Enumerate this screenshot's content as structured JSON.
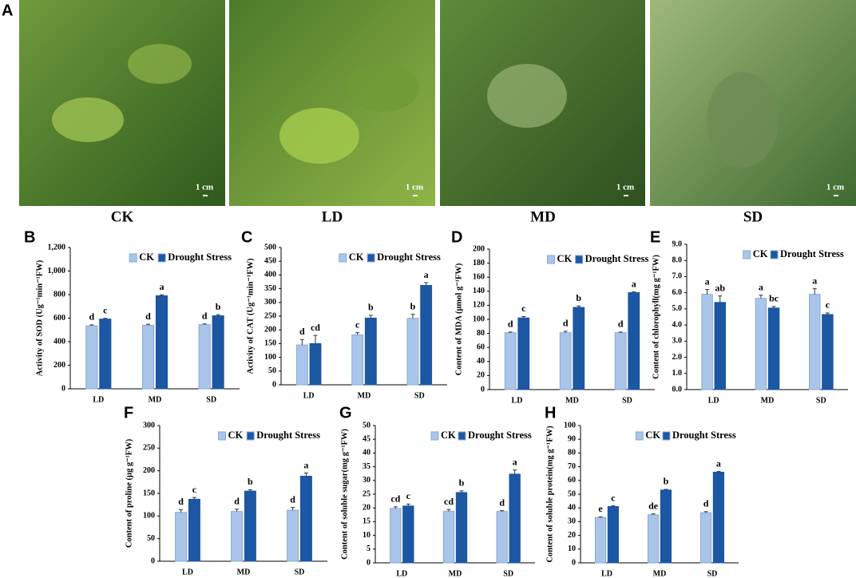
{
  "photo_panel": {
    "label": "A",
    "photos": [
      {
        "caption": "CK",
        "scale_bar": "1 cm"
      },
      {
        "caption": "LD",
        "scale_bar": "1 cm"
      },
      {
        "caption": "MD",
        "scale_bar": "1 cm"
      },
      {
        "caption": "SD",
        "scale_bar": "1 cm"
      }
    ]
  },
  "chart_data": [
    {
      "type": "bar",
      "panel_label": "B",
      "ylabel": "Activity of SOD (Ug⁻¹min⁻¹FW)",
      "categories": [
        "LD",
        "MD",
        "SD"
      ],
      "series": [
        {
          "name": "CK",
          "color": "#a9c5ea",
          "values": [
            535,
            540,
            545
          ],
          "errors": [
            8,
            8,
            6
          ],
          "letters": [
            "d",
            "d",
            "d"
          ]
        },
        {
          "name": "Drought Stress",
          "color": "#1b57a3",
          "values": [
            592,
            790,
            620
          ],
          "errors": [
            6,
            8,
            10
          ],
          "letters": [
            "c",
            "a",
            "b"
          ]
        }
      ],
      "ylim": [
        0,
        1200
      ],
      "yticks": [
        0,
        200,
        400,
        600,
        800,
        {
          "value": 1000,
          "label": "1,000"
        },
        {
          "value": 1200,
          "label": "1,200"
        }
      ]
    },
    {
      "type": "bar",
      "panel_label": "C",
      "ylabel": "Activity of CAT (Ug⁻¹min⁻¹FW)",
      "categories": [
        "LD",
        "MD",
        "SD"
      ],
      "series": [
        {
          "name": "CK",
          "color": "#a9c5ea",
          "values": [
            145,
            182,
            242
          ],
          "errors": [
            20,
            8,
            15
          ],
          "letters": [
            "d",
            "c",
            "b"
          ]
        },
        {
          "name": "Drought Stress",
          "color": "#1b57a3",
          "values": [
            150,
            243,
            362
          ],
          "errors": [
            30,
            10,
            10
          ],
          "letters": [
            "cd",
            "b",
            "a"
          ]
        }
      ],
      "ylim": [
        0,
        500
      ],
      "yticks": [
        0,
        50,
        100,
        150,
        200,
        250,
        300,
        350,
        400,
        450,
        500
      ]
    },
    {
      "type": "bar",
      "panel_label": "D",
      "ylabel": "Content of MDA (μmol g⁻¹FW)",
      "categories": [
        "LD",
        "MD",
        "SD"
      ],
      "series": [
        {
          "name": "CK",
          "color": "#a9c5ea",
          "values": [
            81,
            81,
            81
          ],
          "errors": [
            1,
            2,
            1
          ],
          "letters": [
            "d",
            "d",
            "d"
          ]
        },
        {
          "name": "Drought Stress",
          "color": "#1b57a3",
          "values": [
            102,
            117,
            138
          ],
          "errors": [
            2,
            2,
            1
          ],
          "letters": [
            "c",
            "b",
            "a"
          ]
        }
      ],
      "ylim": [
        0,
        200
      ],
      "yticks": [
        0,
        20,
        40,
        60,
        80,
        100,
        120,
        140,
        160,
        180,
        200
      ]
    },
    {
      "type": "bar",
      "panel_label": "E",
      "ylabel": "Content of chlorophyll(mg g⁻¹FW)",
      "categories": [
        "LD",
        "MD",
        "SD"
      ],
      "series": [
        {
          "name": "CK",
          "color": "#a9c5ea",
          "values": [
            5.9,
            5.65,
            5.9
          ],
          "errors": [
            0.3,
            0.2,
            0.35
          ],
          "letters": [
            "a",
            "a",
            "a"
          ]
        },
        {
          "name": "Drought Stress",
          "color": "#1b57a3",
          "values": [
            5.4,
            5.05,
            4.65
          ],
          "errors": [
            0.4,
            0.1,
            0.1
          ],
          "letters": [
            "ab",
            "bc",
            "c"
          ]
        }
      ],
      "ylim": [
        0,
        9
      ],
      "yticks": [
        {
          "value": 0,
          "label": "0.0"
        },
        {
          "value": 1,
          "label": "1.0"
        },
        {
          "value": 2,
          "label": "2.0"
        },
        {
          "value": 3,
          "label": "3.0"
        },
        {
          "value": 4,
          "label": "4.0"
        },
        {
          "value": 5,
          "label": "5.0"
        },
        {
          "value": 6,
          "label": "6.0"
        },
        {
          "value": 7,
          "label": "7.0"
        },
        {
          "value": 8,
          "label": "8.0"
        },
        {
          "value": 9,
          "label": "9.0"
        }
      ]
    },
    {
      "type": "bar",
      "panel_label": "F",
      "ylabel": "Content of proline (μg g⁻¹FW)",
      "categories": [
        "LD",
        "MD",
        "SD"
      ],
      "series": [
        {
          "name": "CK",
          "color": "#a9c5ea",
          "values": [
            108,
            110,
            113
          ],
          "errors": [
            6,
            5,
            6
          ],
          "letters": [
            "d",
            "d",
            "d"
          ]
        },
        {
          "name": "Drought Stress",
          "color": "#1b57a3",
          "values": [
            137,
            155,
            188
          ],
          "errors": [
            4,
            3,
            7
          ],
          "letters": [
            "c",
            "b",
            "a"
          ]
        }
      ],
      "ylim": [
        0,
        300
      ],
      "yticks": [
        0,
        50,
        100,
        150,
        200,
        250,
        300
      ]
    },
    {
      "type": "bar",
      "panel_label": "G",
      "ylabel": "Content of soluble sugar(mg g⁻¹FW)",
      "categories": [
        "LD",
        "MD",
        "SD"
      ],
      "series": [
        {
          "name": "CK",
          "color": "#a9c5ea",
          "values": [
            19.8,
            18.8,
            18.7
          ],
          "errors": [
            0.6,
            0.6,
            0.3
          ],
          "letters": [
            "cd",
            "cd",
            "d"
          ]
        },
        {
          "name": "Drought Stress",
          "color": "#1b57a3",
          "values": [
            20.7,
            25.6,
            32.3
          ],
          "errors": [
            0.7,
            0.6,
            1.5
          ],
          "letters": [
            "c",
            "b",
            "a"
          ]
        }
      ],
      "ylim": [
        0,
        50
      ],
      "yticks": [
        0,
        5,
        10,
        15,
        20,
        25,
        30,
        35,
        40,
        45,
        50
      ]
    },
    {
      "type": "bar",
      "panel_label": "H",
      "ylabel": "Content of soluble protein(mg g⁻¹FW)",
      "categories": [
        "LD",
        "MD",
        "SD"
      ],
      "series": [
        {
          "name": "CK",
          "color": "#a9c5ea",
          "values": [
            33,
            35,
            36.5
          ],
          "errors": [
            0.5,
            0.7,
            0.8
          ],
          "letters": [
            "e",
            "de",
            "d"
          ]
        },
        {
          "name": "Drought Stress",
          "color": "#1b57a3",
          "values": [
            41,
            53,
            66
          ],
          "errors": [
            0.5,
            0.5,
            0.5
          ],
          "letters": [
            "c",
            "b",
            "a"
          ]
        }
      ],
      "ylim": [
        0,
        100
      ],
      "yticks": [
        0,
        10,
        20,
        30,
        40,
        50,
        60,
        70,
        80,
        90,
        100
      ]
    }
  ]
}
